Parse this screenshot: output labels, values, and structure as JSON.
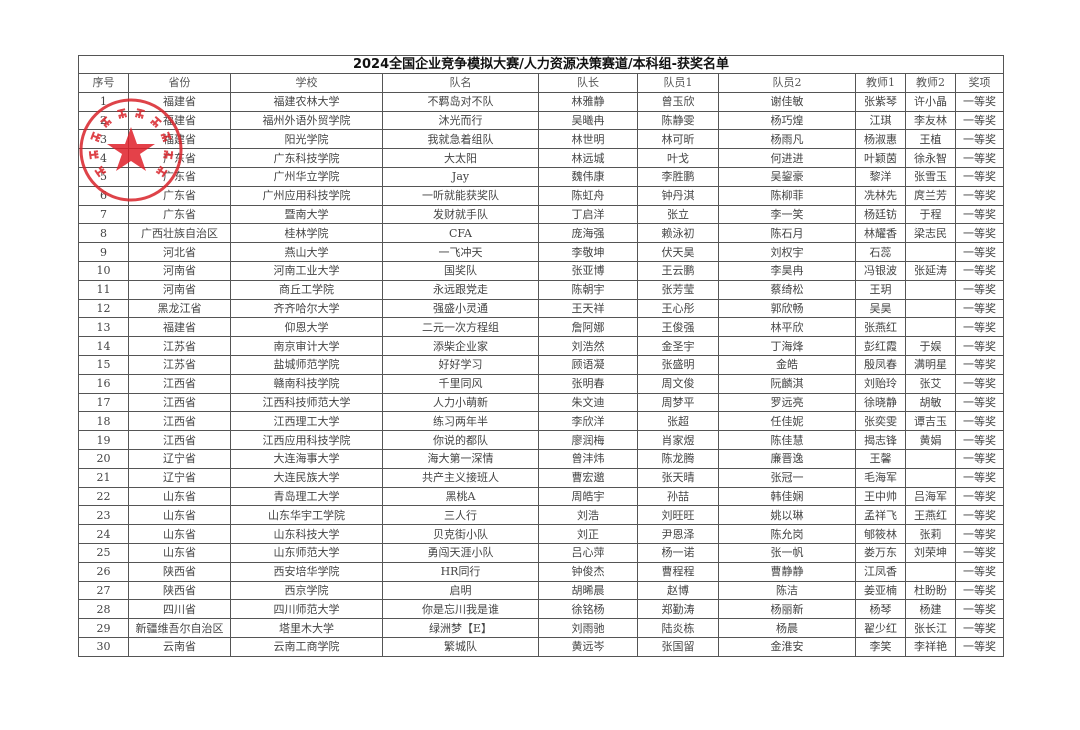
{
  "title": "2024全国企业竞争模拟大赛/人力资源决策赛道/本科组-获奖名单",
  "headers": [
    "序号",
    "省份",
    "学校",
    "队名",
    "队长",
    "队员1",
    "队员2",
    "教师1",
    "教师2",
    "奖项"
  ],
  "rows": [
    [
      "1",
      "福建省",
      "福建农林大学",
      "不羁岛对不队",
      "林雅静",
      "曾玉欣",
      "谢佳敏",
      "张紫琴",
      "许小晶",
      "一等奖"
    ],
    [
      "2",
      "福建省",
      "福州外语外贸学院",
      "沐光而行",
      "吴曦冉",
      "陈静雯",
      "杨巧煌",
      "江琪",
      "李友林",
      "一等奖"
    ],
    [
      "3",
      "福建省",
      "阳光学院",
      "我就急着组队",
      "林世明",
      "林可昕",
      "杨雨凡",
      "杨淑惠",
      "王植",
      "一等奖"
    ],
    [
      "4",
      "广东省",
      "广东科技学院",
      "大太阳",
      "林远城",
      "叶戈",
      "何进进",
      "叶颖茵",
      "徐永智",
      "一等奖"
    ],
    [
      "5",
      "广东省",
      "广州华立学院",
      "Jay",
      "魏伟康",
      "李胜鹏",
      "吴鋆豪",
      "黎洋",
      "张雪玉",
      "一等奖"
    ],
    [
      "6",
      "广东省",
      "广州应用科技学院",
      "一听就能获奖队",
      "陈虹舟",
      "钟丹淇",
      "陈柳菲",
      "冼林先",
      "庹兰芳",
      "一等奖"
    ],
    [
      "7",
      "广东省",
      "暨南大学",
      "发财就手队",
      "丁启洋",
      "张立",
      "李一笑",
      "杨廷钫",
      "于程",
      "一等奖"
    ],
    [
      "8",
      "广西壮族自治区",
      "桂林学院",
      "CFA",
      "庞海强",
      "赖泳初",
      "陈石月",
      "林耀香",
      "梁志民",
      "一等奖"
    ],
    [
      "9",
      "河北省",
      "燕山大学",
      "一飞冲天",
      "李敬坤",
      "伏天昊",
      "刘权宇",
      "石蕊",
      "",
      "一等奖"
    ],
    [
      "10",
      "河南省",
      "河南工业大学",
      "国奖队",
      "张亚博",
      "王云鹏",
      "李昊冉",
      "冯银波",
      "张延涛",
      "一等奖"
    ],
    [
      "11",
      "河南省",
      "商丘工学院",
      "永远跟党走",
      "陈朝宇",
      "张芳莹",
      "蔡绮松",
      "王玥",
      "",
      "一等奖"
    ],
    [
      "12",
      "黑龙江省",
      "齐齐哈尔大学",
      "强盛小灵通",
      "王天祥",
      "王心彤",
      "郭欣畅",
      "吴昊",
      "",
      "一等奖"
    ],
    [
      "13",
      "福建省",
      "仰恩大学",
      "二元一次方程组",
      "詹阿娜",
      "王俊强",
      "林平欣",
      "张燕红",
      "",
      "一等奖"
    ],
    [
      "14",
      "江苏省",
      "南京审计大学",
      "添柴企业家",
      "刘浩然",
      "金圣宇",
      "丁海烽",
      "彭红霞",
      "于娱",
      "一等奖"
    ],
    [
      "15",
      "江苏省",
      "盐城师范学院",
      "好好学习",
      "顾语凝",
      "张盛明",
      "金皓",
      "殷凤春",
      "满明星",
      "一等奖"
    ],
    [
      "16",
      "江西省",
      "赣南科技学院",
      "千里同风",
      "张明春",
      "周文俊",
      "阮麟淇",
      "刘贻玲",
      "张艾",
      "一等奖"
    ],
    [
      "17",
      "江西省",
      "江西科技师范大学",
      "人力小萌新",
      "朱文迪",
      "周梦平",
      "罗远亮",
      "徐晓静",
      "胡敏",
      "一等奖"
    ],
    [
      "18",
      "江西省",
      "江西理工大学",
      "练习两年半",
      "李欣洋",
      "张超",
      "任佳妮",
      "张奕雯",
      "谭吉玉",
      "一等奖"
    ],
    [
      "19",
      "江西省",
      "江西应用科技学院",
      "你说的都队",
      "廖润梅",
      "肖家煜",
      "陈佳慧",
      "揭志锋",
      "黄娟",
      "一等奖"
    ],
    [
      "20",
      "辽宁省",
      "大连海事大学",
      "海大第一深情",
      "曾沣炜",
      "陈龙腾",
      "廉晋逸",
      "王馨",
      "",
      "一等奖"
    ],
    [
      "21",
      "辽宁省",
      "大连民族大学",
      "共产主义接班人",
      "曹宏邈",
      "张天晴",
      "张冠一",
      "毛海军",
      "",
      "一等奖"
    ],
    [
      "22",
      "山东省",
      "青岛理工大学",
      "黑桃A",
      "周皓宇",
      "孙喆",
      "韩佳娴",
      "王中帅",
      "吕海军",
      "一等奖"
    ],
    [
      "23",
      "山东省",
      "山东华宇工学院",
      "三人行",
      "刘浩",
      "刘旺旺",
      "姚以琳",
      "孟祥飞",
      "王燕红",
      "一等奖"
    ],
    [
      "24",
      "山东省",
      "山东科技大学",
      "贝克街小队",
      "刘正",
      "尹恩泽",
      "陈允岗",
      "郇筱林",
      "张莉",
      "一等奖"
    ],
    [
      "25",
      "山东省",
      "山东师范大学",
      "勇闯天涯小队",
      "吕心萍",
      "杨一诺",
      "张一帆",
      "娄万东",
      "刘荣坤",
      "一等奖"
    ],
    [
      "26",
      "陕西省",
      "西安培华学院",
      "HR同行",
      "钟俊杰",
      "曹程程",
      "曹静静",
      "江凤香",
      "",
      "一等奖"
    ],
    [
      "27",
      "陕西省",
      "西京学院",
      "启明",
      "胡晞晨",
      "赵博",
      "陈洁",
      "姜亚楠",
      "杜盼盼",
      "一等奖"
    ],
    [
      "28",
      "四川省",
      "四川师范大学",
      "你是忘川我是谁",
      "徐铭杨",
      "郑勤涛",
      "杨丽新",
      "杨琴",
      "杨建",
      "一等奖"
    ],
    [
      "29",
      "新疆维吾尔自治区",
      "塔里木大学",
      "绿洲梦【E】",
      "刘雨驰",
      "陆炎栋",
      "杨晨",
      "翟少红",
      "张长江",
      "一等奖"
    ],
    [
      "30",
      "云南省",
      "云南工商学院",
      "繁城队",
      "黄远岑",
      "张国留",
      "金淮安",
      "李笑",
      "李祥艳",
      "一等奖"
    ]
  ],
  "stamp": {
    "text": "中国管理现代化研究会",
    "color": "#d9232a",
    "icon": "star-icon"
  }
}
